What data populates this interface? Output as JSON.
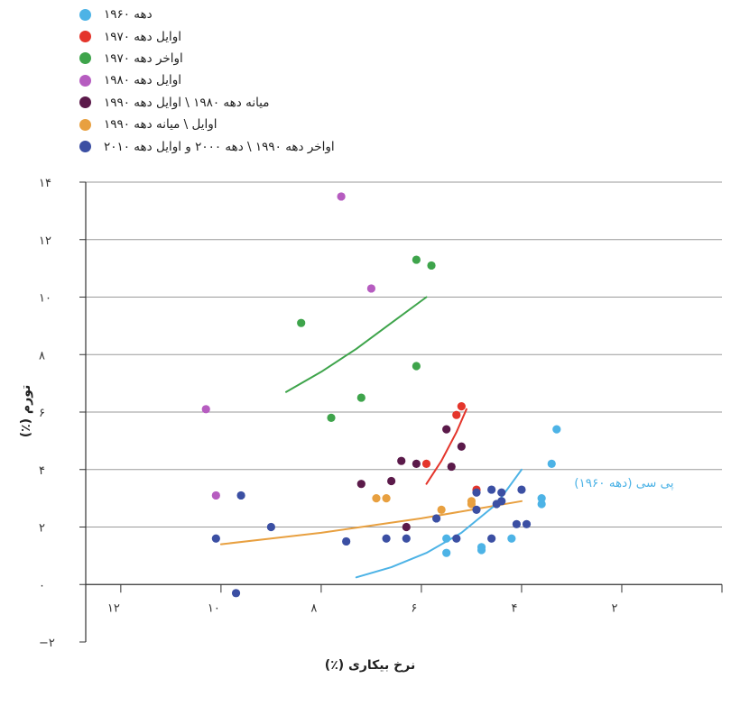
{
  "chart_data": {
    "type": "scatter",
    "title": "",
    "xlabel": "نرخ بیکاری (٪)",
    "ylabel": "تورم (٪)",
    "xlim": [
      12.7,
      0
    ],
    "ylim": [
      -2,
      14
    ],
    "x_ticks": [
      12,
      10,
      8,
      6,
      4,
      2
    ],
    "x_tick_labels": [
      "۱۲",
      "۱۰",
      "۸",
      "۶",
      "۴",
      "۲"
    ],
    "y_ticks": [
      14,
      12,
      10,
      8,
      6,
      4,
      2,
      0,
      -2
    ],
    "y_tick_labels": [
      "۱۴",
      "۱۲",
      "۱۰",
      "۸",
      "۶",
      "۴",
      "۲",
      "۰",
      "−۲"
    ],
    "grid": "horizontal",
    "legend_placement": "top-left",
    "series": [
      {
        "name": "دهه ۱۹۶۰",
        "color": "#4db3e6",
        "points": [
          [
            5.5,
            1.1
          ],
          [
            4.8,
            1.2
          ],
          [
            4.8,
            1.3
          ],
          [
            4.2,
            1.6
          ],
          [
            3.6,
            2.8
          ],
          [
            3.6,
            3.0
          ],
          [
            3.4,
            4.2
          ],
          [
            3.3,
            5.4
          ],
          [
            5.5,
            1.6
          ]
        ]
      },
      {
        "name": "اوایل دهه ۱۹۷۰",
        "color": "#e4352b",
        "points": [
          [
            4.9,
            3.3
          ],
          [
            5.9,
            4.2
          ],
          [
            5.3,
            5.9
          ],
          [
            5.2,
            6.2
          ]
        ]
      },
      {
        "name": "اواخر دهه ۱۹۷۰",
        "color": "#3ea44b",
        "points": [
          [
            6.1,
            11.3
          ],
          [
            5.8,
            11.1
          ],
          [
            8.4,
            9.1
          ],
          [
            6.1,
            7.6
          ],
          [
            7.2,
            6.5
          ],
          [
            7.8,
            5.8
          ]
        ]
      },
      {
        "name": "اوایل دهه ۱۹۸۰",
        "color": "#b65cc0",
        "points": [
          [
            7.6,
            13.5
          ],
          [
            7.0,
            10.3
          ],
          [
            10.3,
            6.1
          ],
          [
            10.1,
            3.1
          ]
        ]
      },
      {
        "name": "میانه دهه ۱۹۸۰ \\ اوایل دهه ۱۹۹۰",
        "color": "#5b1a4a",
        "points": [
          [
            5.5,
            5.4
          ],
          [
            5.4,
            4.1
          ],
          [
            5.2,
            4.8
          ],
          [
            6.4,
            4.3
          ],
          [
            6.1,
            4.2
          ],
          [
            7.2,
            3.5
          ],
          [
            6.6,
            3.6
          ],
          [
            6.3,
            2.0
          ]
        ]
      },
      {
        "name": "اوایل \\ میانه دهه ۱۹۹۰",
        "color": "#e8a040",
        "points": [
          [
            6.7,
            3.0
          ],
          [
            6.9,
            3.0
          ],
          [
            5.6,
            2.6
          ],
          [
            5.0,
            2.8
          ],
          [
            5.0,
            2.9
          ]
        ]
      },
      {
        "name": "اواخر دهه ۱۹۹۰ \\ دهه ۲۰۰۰ و اوایل دهه ۲۰۱۰",
        "color": "#3b4fa3",
        "points": [
          [
            10.1,
            1.6
          ],
          [
            9.7,
            -0.3
          ],
          [
            9.6,
            3.1
          ],
          [
            9.0,
            2.0
          ],
          [
            7.5,
            1.5
          ],
          [
            6.7,
            1.6
          ],
          [
            6.3,
            1.6
          ],
          [
            5.7,
            2.3
          ],
          [
            5.3,
            1.6
          ],
          [
            4.9,
            2.6
          ],
          [
            4.9,
            3.2
          ],
          [
            4.6,
            3.3
          ],
          [
            4.5,
            2.8
          ],
          [
            4.4,
            2.9
          ],
          [
            4.1,
            2.1
          ],
          [
            4.4,
            3.2
          ],
          [
            4.0,
            3.3
          ],
          [
            4.6,
            1.6
          ],
          [
            3.9,
            2.1
          ]
        ]
      }
    ],
    "curves": [
      {
        "name": "اواخر دهه ۱۹۷۰",
        "color": "#3ea44b",
        "x": [
          8.7,
          8.0,
          7.3,
          6.6,
          5.9
        ],
        "y": [
          6.7,
          7.4,
          8.2,
          9.1,
          10.0
        ]
      },
      {
        "name": "اوایل دهه ۱۹۷۰",
        "color": "#e4352b",
        "x": [
          5.9,
          5.6,
          5.3,
          5.1
        ],
        "y": [
          3.5,
          4.3,
          5.3,
          6.1
        ]
      },
      {
        "name": "اوایل \\ میانه دهه ۱۹۹۰",
        "color": "#e8a040",
        "x": [
          10.0,
          9.0,
          8.0,
          7.0,
          6.0,
          5.0,
          4.0
        ],
        "y": [
          1.4,
          1.6,
          1.8,
          2.05,
          2.3,
          2.6,
          2.9
        ]
      },
      {
        "name": "پی سی (دهه ۱۹۶۰)",
        "color": "#4db3e6",
        "x": [
          7.3,
          6.6,
          5.9,
          5.2,
          4.5,
          4.0
        ],
        "y": [
          0.25,
          0.6,
          1.1,
          1.8,
          2.8,
          4.0
        ]
      }
    ],
    "annotations": [
      {
        "text": "پی سی (دهه ۱۹۶۰)",
        "x": 2.95,
        "y": 3.4,
        "color": "#4db3e6"
      }
    ]
  }
}
